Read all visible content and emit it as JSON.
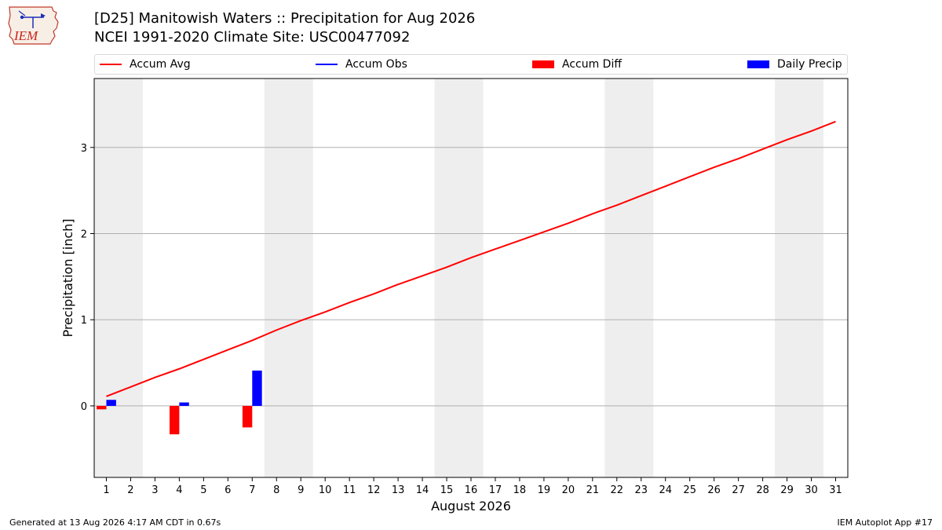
{
  "header": {
    "title": "[D25] Manitowish Waters :: Precipitation for Aug 2026",
    "subtitle": "NCEI 1991-2020 Climate Site: USC00477092",
    "logo_text": "IEM"
  },
  "footer": {
    "left": "Generated at 13 Aug 2026 4:17 AM CDT in 0.67s",
    "right": "IEM Autoplot App #17"
  },
  "legend": [
    {
      "label": "Accum Avg",
      "kind": "line",
      "color": "#ff0000"
    },
    {
      "label": "Accum Obs",
      "kind": "line",
      "color": "#0000ff"
    },
    {
      "label": "Accum Diff",
      "kind": "box",
      "color": "#ff0000"
    },
    {
      "label": "Daily Precip",
      "kind": "box",
      "color": "#0000ff"
    }
  ],
  "chart_data": {
    "type": "line",
    "xlabel": "August 2026",
    "ylabel": "Precipitation [inch]",
    "xlim": [
      0.5,
      31.5
    ],
    "ylim": [
      -0.83,
      3.8
    ],
    "yticks": [
      0,
      1,
      2,
      3
    ],
    "xticks": [
      1,
      2,
      3,
      4,
      5,
      6,
      7,
      8,
      9,
      10,
      11,
      12,
      13,
      14,
      15,
      16,
      17,
      18,
      19,
      20,
      21,
      22,
      23,
      24,
      25,
      26,
      27,
      28,
      29,
      30,
      31
    ],
    "grid": "y",
    "legend_position": "top",
    "weekend_shading": [
      [
        0.5,
        2.5
      ],
      [
        7.5,
        9.5
      ],
      [
        14.5,
        16.5
      ],
      [
        21.5,
        23.5
      ],
      [
        28.5,
        30.5
      ]
    ],
    "accum_avg": {
      "x": [
        1,
        2,
        3,
        4,
        5,
        6,
        7,
        8,
        9,
        10,
        11,
        12,
        13,
        14,
        15,
        16,
        17,
        18,
        19,
        20,
        21,
        22,
        23,
        24,
        25,
        26,
        27,
        28,
        29,
        30,
        31
      ],
      "y": [
        0.11,
        0.22,
        0.33,
        0.43,
        0.54,
        0.65,
        0.76,
        0.88,
        0.99,
        1.09,
        1.2,
        1.3,
        1.41,
        1.51,
        1.61,
        1.72,
        1.82,
        1.92,
        2.02,
        2.12,
        2.23,
        2.33,
        2.44,
        2.55,
        2.66,
        2.77,
        2.87,
        2.98,
        3.09,
        3.19,
        3.3
      ],
      "color": "#ff0000"
    },
    "accum_diff": {
      "x": [
        1,
        4,
        7
      ],
      "y": [
        -0.04,
        -0.33,
        -0.25
      ],
      "color": "#ff0000"
    },
    "daily_precip": {
      "x": [
        1,
        4,
        7
      ],
      "y": [
        0.07,
        0.04,
        0.41
      ],
      "color": "#0000ff"
    }
  }
}
